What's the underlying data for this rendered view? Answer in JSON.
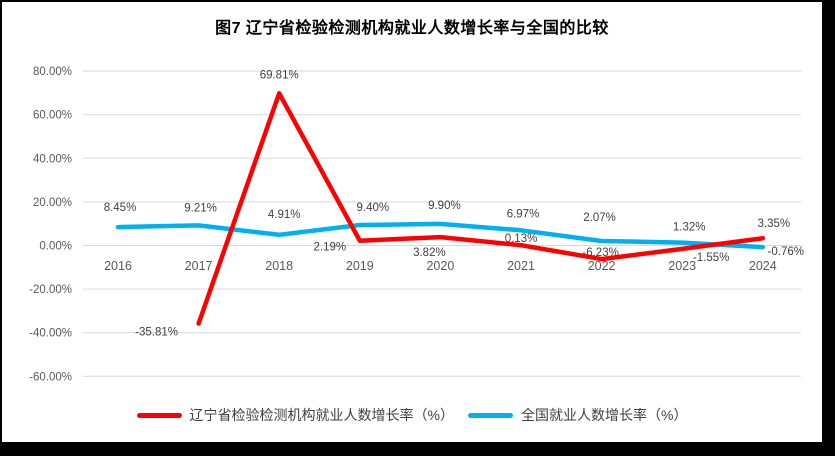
{
  "title": "图7 辽宁省检验检测机构就业人数增长率与全国的比较",
  "colors": {
    "background": "#ffffff",
    "frame_border": "#000000",
    "grid": "#d9d9d9",
    "axis_text": "#595959",
    "data_label_text": "#3f3f3f",
    "liaoning_red": "#fe0000",
    "national_blue": "#00b0f0"
  },
  "chart_data": {
    "type": "line",
    "title": "图7 辽宁省检验检测机构就业人数增长率与全国的比较",
    "categories": [
      "2016",
      "2017",
      "2018",
      "2019",
      "2020",
      "2021",
      "2022",
      "2023",
      "2024"
    ],
    "series": [
      {
        "name": "辽宁省检验检测机构就业人数增长率（%）",
        "color": "#fe0000",
        "values": [
          null,
          -35.81,
          69.81,
          2.19,
          3.82,
          0.13,
          -6.23,
          -1.55,
          3.35
        ],
        "data_labels": [
          "",
          "-35.81%",
          "69.81%",
          "2.19%",
          "3.82%",
          "0.13%",
          "-6.23%",
          "-1.55%",
          "3.35%"
        ]
      },
      {
        "name": "全国就业人数增长率（%）",
        "color": "#00b0f0",
        "values": [
          8.45,
          9.21,
          4.91,
          9.4,
          9.9,
          6.97,
          2.07,
          1.32,
          -0.76
        ],
        "data_labels": [
          "8.45%",
          "9.21%",
          "4.91%",
          "9.40%",
          "9.90%",
          "6.97%",
          "2.07%",
          "1.32%",
          "-0.76%"
        ]
      }
    ],
    "ylim": [
      -60,
      80
    ],
    "yticks": [
      {
        "value": 80,
        "label": "80.00%"
      },
      {
        "value": 60,
        "label": "60.00%"
      },
      {
        "value": 40,
        "label": "40.00%"
      },
      {
        "value": 20,
        "label": "20.00%"
      },
      {
        "value": 0,
        "label": "0.00%"
      },
      {
        "value": -20,
        "label": "-20.00%"
      },
      {
        "value": -40,
        "label": "-40.00%"
      },
      {
        "value": -60,
        "label": "-60.00%"
      }
    ],
    "grid": true,
    "legend_position": "bottom"
  }
}
